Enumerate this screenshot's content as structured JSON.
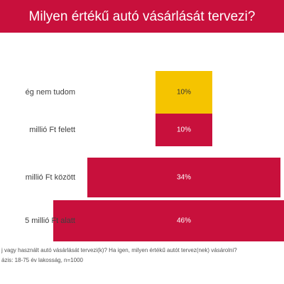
{
  "chart_data": {
    "type": "funnel",
    "title": "Milyen értékű autó vásárlását tervezi?",
    "categories": [
      "ég nem tudom",
      "millió Ft felett",
      "millió Ft között",
      "5 millió Ft alatt"
    ],
    "values": [
      10,
      10,
      34,
      46
    ],
    "value_labels": [
      "10%",
      "10%",
      "34%",
      "46%"
    ],
    "colors": [
      "#f5c400",
      "#c8103c",
      "#c8103c",
      "#c8103c"
    ],
    "title_color": "#c8103c",
    "notes": [
      "j vagy használt autó vásárlását tervezi(k)? Ha igen, milyen értékű autót tervez(nek) vásárolni?",
      "ázis: 18-75 év lakosság, n=1000"
    ]
  }
}
